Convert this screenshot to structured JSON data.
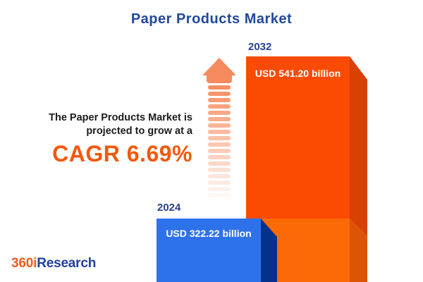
{
  "header": {
    "title": "Paper Products Market"
  },
  "annotation": {
    "line1": "The Paper Products Market is",
    "line2": "projected to grow at a",
    "cagr": "CAGR 6.69%"
  },
  "bars": [
    {
      "year": "2024",
      "value_label": "USD 322.22 billion",
      "front_color": "#2E72EB",
      "side_color": "#05318B"
    },
    {
      "year": "2032",
      "value_label": "USD 541.20 billion",
      "front_color": "#FB4B03",
      "front_color_lower": "#FB6A06",
      "side_color": "#D84004",
      "side_color_lower": "#DC5506"
    }
  ],
  "arrow": {
    "icon": "growth-arrow-icon",
    "color": "#F68A5E",
    "stripe_count": 18
  },
  "logo": {
    "prefix": "360i",
    "suffix": "Research",
    "prefix_color": "#F15B22",
    "suffix_color": "#21409A"
  },
  "colors": {
    "title": "#21489E",
    "cagr": "#F4570D",
    "year_label": "#27418D",
    "annotation_text": "#1B1B1B",
    "background": "#FFFFFF"
  },
  "chart_data": {
    "type": "bar",
    "title": "Paper Products Market",
    "categories": [
      "2024",
      "2032"
    ],
    "values": [
      322.22,
      541.2
    ],
    "unit": "USD billion",
    "value_labels": [
      "USD 322.22 billion",
      "USD 541.20 billion"
    ],
    "cagr_percent": 6.69,
    "bar_colors": [
      "#2E72EB",
      "#FB4B03"
    ],
    "orientation": "vertical",
    "grid": false,
    "legend": "none",
    "style": "3d-infographic"
  }
}
